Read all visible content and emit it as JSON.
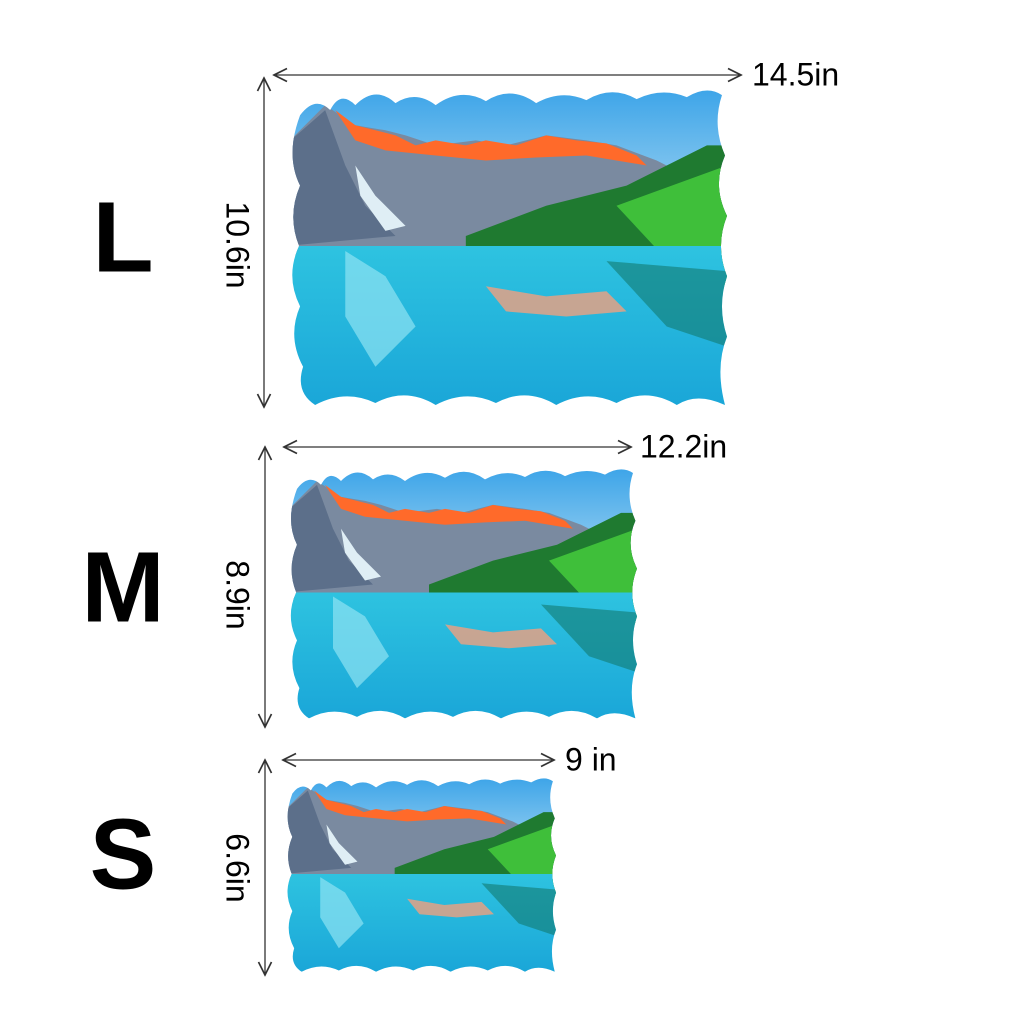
{
  "sizes": [
    {
      "label": "L",
      "width": "14.5in",
      "height": "10.6in"
    },
    {
      "label": "M",
      "width": "12.2in",
      "height": "8.9in"
    },
    {
      "label": "S",
      "width": "9 in",
      "height": "6.6in"
    }
  ]
}
